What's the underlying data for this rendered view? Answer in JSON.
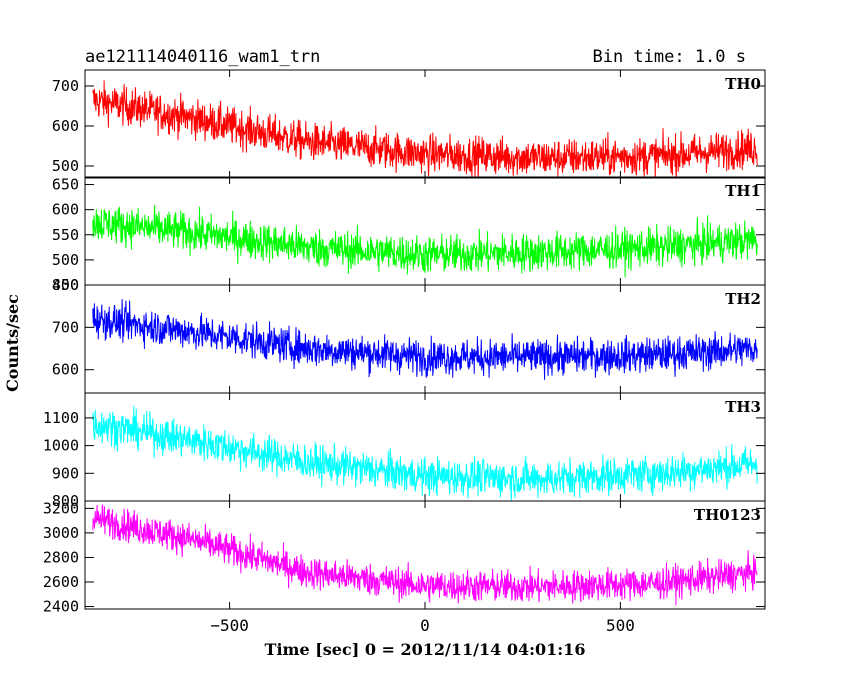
{
  "chart_data": {
    "type": "line",
    "title": "ae121114040116_wam1_trn",
    "bin_time_label": "Bin time: 1.0 s",
    "xlabel": "Time [sec] 0 = 2012/11/14 04:01:16",
    "ylabel": "Counts/sec",
    "xlim": [
      -870,
      870
    ],
    "x_ticks": [
      -500,
      0,
      500
    ],
    "x_tick_labels": [
      "−500",
      "0",
      "500"
    ],
    "x_range_data": [
      -850,
      850
    ],
    "grid": false,
    "panels": [
      {
        "name": "TH0",
        "color": "#ff0000",
        "ylim": [
          470,
          740
        ],
        "y_ticks": [
          500,
          600,
          700
        ],
        "trend_anchors": [
          [
            -850,
            665
          ],
          [
            -600,
            620
          ],
          [
            -300,
            560
          ],
          [
            0,
            530
          ],
          [
            300,
            520
          ],
          [
            600,
            525
          ],
          [
            850,
            545
          ]
        ],
        "noise_amplitude": 40
      },
      {
        "name": "TH1",
        "color": "#00ff00",
        "ylim": [
          450,
          665
        ],
        "y_ticks": [
          450,
          500,
          550,
          600,
          650
        ],
        "trend_anchors": [
          [
            -850,
            575
          ],
          [
            -600,
            555
          ],
          [
            -300,
            525
          ],
          [
            0,
            510
          ],
          [
            300,
            515
          ],
          [
            600,
            525
          ],
          [
            850,
            540
          ]
        ],
        "noise_amplitude": 32
      },
      {
        "name": "TH2",
        "color": "#0000ff",
        "ylim": [
          545,
          800
        ],
        "y_ticks": [
          600,
          700,
          800
        ],
        "trend_anchors": [
          [
            -850,
            720
          ],
          [
            -600,
            690
          ],
          [
            -300,
            650
          ],
          [
            0,
            630
          ],
          [
            300,
            630
          ],
          [
            600,
            635
          ],
          [
            850,
            650
          ]
        ],
        "noise_amplitude": 35
      },
      {
        "name": "TH3",
        "color": "#00ffff",
        "ylim": [
          800,
          1190
        ],
        "y_ticks": [
          800,
          900,
          1000,
          1100
        ],
        "trend_anchors": [
          [
            -850,
            1080
          ],
          [
            -600,
            1020
          ],
          [
            -300,
            940
          ],
          [
            0,
            890
          ],
          [
            300,
            880
          ],
          [
            600,
            900
          ],
          [
            850,
            935
          ]
        ],
        "noise_amplitude": 55
      },
      {
        "name": "TH0123",
        "color": "#ff00ff",
        "ylim": [
          2380,
          3260
        ],
        "y_ticks": [
          2400,
          2600,
          2800,
          3000,
          3200
        ],
        "trend_anchors": [
          [
            -850,
            3120
          ],
          [
            -600,
            2950
          ],
          [
            -300,
            2680
          ],
          [
            0,
            2570
          ],
          [
            300,
            2560
          ],
          [
            600,
            2590
          ],
          [
            850,
            2680
          ]
        ],
        "noise_amplitude": 110
      }
    ]
  }
}
